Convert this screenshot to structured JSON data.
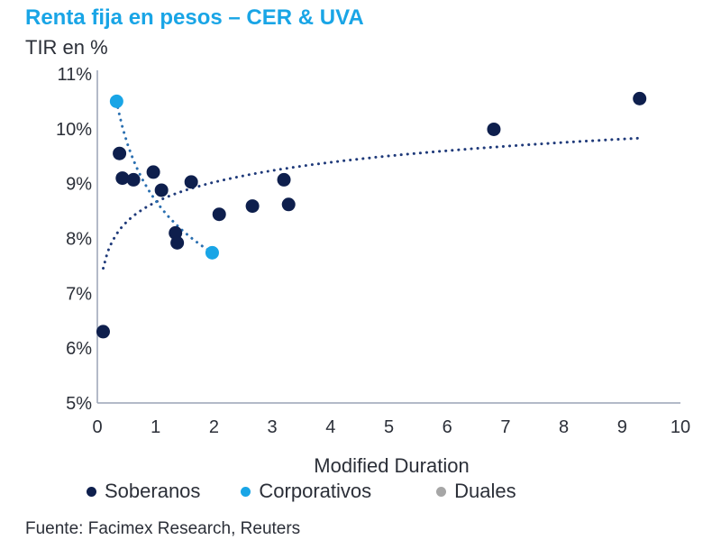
{
  "header": {
    "title": "Renta fija en pesos – CER & UVA",
    "subtitle": "TIR en %"
  },
  "source": "Fuente: Facimex Research, Reuters",
  "colors": {
    "soberanos": "#0e1f4d",
    "corporativos": "#19a5e6",
    "duales": "#a6a6a6",
    "trend_soberanos": "#1f3a7a",
    "trend_corporativos": "#2a6fb0",
    "title": "#19a5e6",
    "axis": "#9aa4b5"
  },
  "legend": [
    {
      "key": "soberanos",
      "label": "Soberanos"
    },
    {
      "key": "corporativos",
      "label": "Corporativos"
    },
    {
      "key": "duales",
      "label": "Duales"
    }
  ],
  "chart_data": {
    "type": "scatter",
    "xlabel": "Modified Duration",
    "ylabel": "",
    "xlim": [
      0,
      10
    ],
    "ylim": [
      5,
      11
    ],
    "x_ticks": [
      "0",
      "1",
      "2",
      "3",
      "4",
      "5",
      "6",
      "7",
      "8",
      "9",
      "10"
    ],
    "y_ticks": [
      "5%",
      "6%",
      "7%",
      "8%",
      "9%",
      "10%",
      "11%"
    ],
    "grid": false,
    "legend_position": "bottom",
    "series": [
      {
        "name": "Soberanos",
        "key": "soberanos",
        "points": [
          {
            "x": 0.1,
            "y": 6.3
          },
          {
            "x": 0.38,
            "y": 9.55
          },
          {
            "x": 0.43,
            "y": 9.1
          },
          {
            "x": 0.62,
            "y": 9.07
          },
          {
            "x": 0.96,
            "y": 9.21
          },
          {
            "x": 1.1,
            "y": 8.88
          },
          {
            "x": 1.34,
            "y": 8.1
          },
          {
            "x": 1.37,
            "y": 7.92
          },
          {
            "x": 1.61,
            "y": 9.03
          },
          {
            "x": 2.09,
            "y": 8.44
          },
          {
            "x": 2.66,
            "y": 8.59
          },
          {
            "x": 3.2,
            "y": 9.07
          },
          {
            "x": 3.28,
            "y": 8.62
          },
          {
            "x": 6.8,
            "y": 9.99
          },
          {
            "x": 9.3,
            "y": 10.55
          }
        ]
      },
      {
        "name": "Corporativos",
        "key": "corporativos",
        "points": [
          {
            "x": 0.33,
            "y": 10.5
          },
          {
            "x": 1.97,
            "y": 7.74
          }
        ]
      },
      {
        "name": "Duales",
        "key": "duales",
        "points": []
      }
    ],
    "trendlines": [
      {
        "series": "Soberanos",
        "kind": "logarithmic",
        "x_range": [
          0.1,
          9.3
        ]
      },
      {
        "series": "Corporativos",
        "kind": "power",
        "x_range": [
          0.33,
          1.97
        ]
      }
    ]
  }
}
